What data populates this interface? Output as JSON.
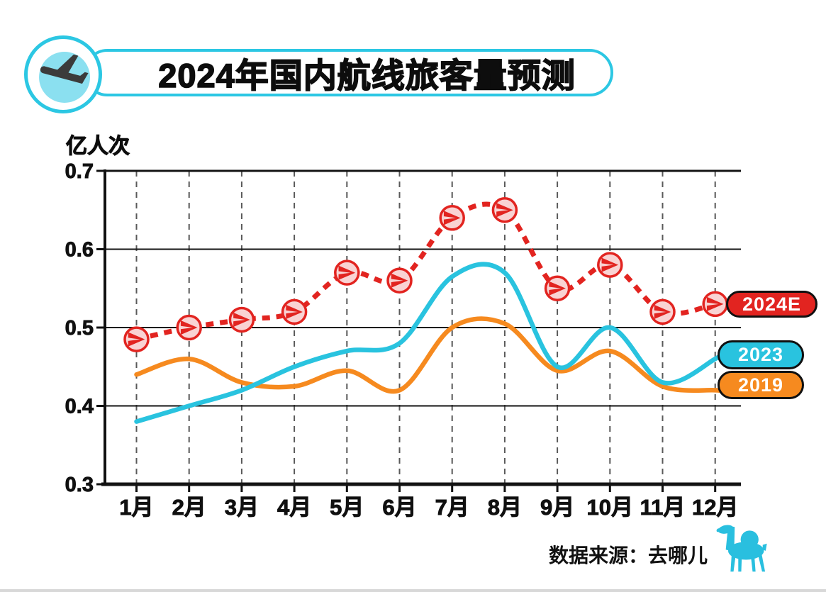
{
  "header": {
    "title": "2024年国内航线旅客量预测",
    "badge_icon": "airplane-landing-icon"
  },
  "chart_data": {
    "type": "line",
    "title": "2024年国内航线旅客量预测",
    "ylabel": "亿人次",
    "xlabel": "",
    "categories": [
      "1月",
      "2月",
      "3月",
      "4月",
      "5月",
      "6月",
      "7月",
      "8月",
      "9月",
      "10月",
      "11月",
      "12月"
    ],
    "yticks": [
      0.7,
      0.6,
      0.5,
      0.4,
      0.3
    ],
    "ylim": [
      0.3,
      0.7
    ],
    "grid": "horizontal-solid and vertical-dashed",
    "legend_position": "right",
    "series": [
      {
        "name": "2024E",
        "color": "#e22420",
        "style": "dashed",
        "marker": "airplane-circle",
        "values": [
          0.485,
          0.5,
          0.51,
          0.52,
          0.57,
          0.56,
          0.64,
          0.65,
          0.55,
          0.58,
          0.52,
          0.53
        ]
      },
      {
        "name": "2023",
        "color": "#29c3df",
        "style": "solid",
        "marker": "none",
        "values": [
          0.38,
          0.4,
          0.42,
          0.45,
          0.47,
          0.48,
          0.565,
          0.57,
          0.45,
          0.5,
          0.43,
          0.46
        ]
      },
      {
        "name": "2019",
        "color": "#f68a1f",
        "style": "solid",
        "marker": "none",
        "values": [
          0.44,
          0.46,
          0.43,
          0.425,
          0.445,
          0.42,
          0.5,
          0.505,
          0.445,
          0.47,
          0.425,
          0.42
        ]
      }
    ]
  },
  "footer": {
    "source_label": "数据来源：去哪儿",
    "logo": "qunar-camel-logo"
  },
  "palette": {
    "accent_cyan": "#2cc7e3",
    "light_cyan": "#8be0f0",
    "red": "#e22420",
    "marker_fill": "#f9d3d3",
    "orange": "#f68a1f",
    "dark": "#101010",
    "plane_dark": "#3b3b3b",
    "grid_dash": "#595959",
    "camel_cyan": "#29bfdf"
  }
}
